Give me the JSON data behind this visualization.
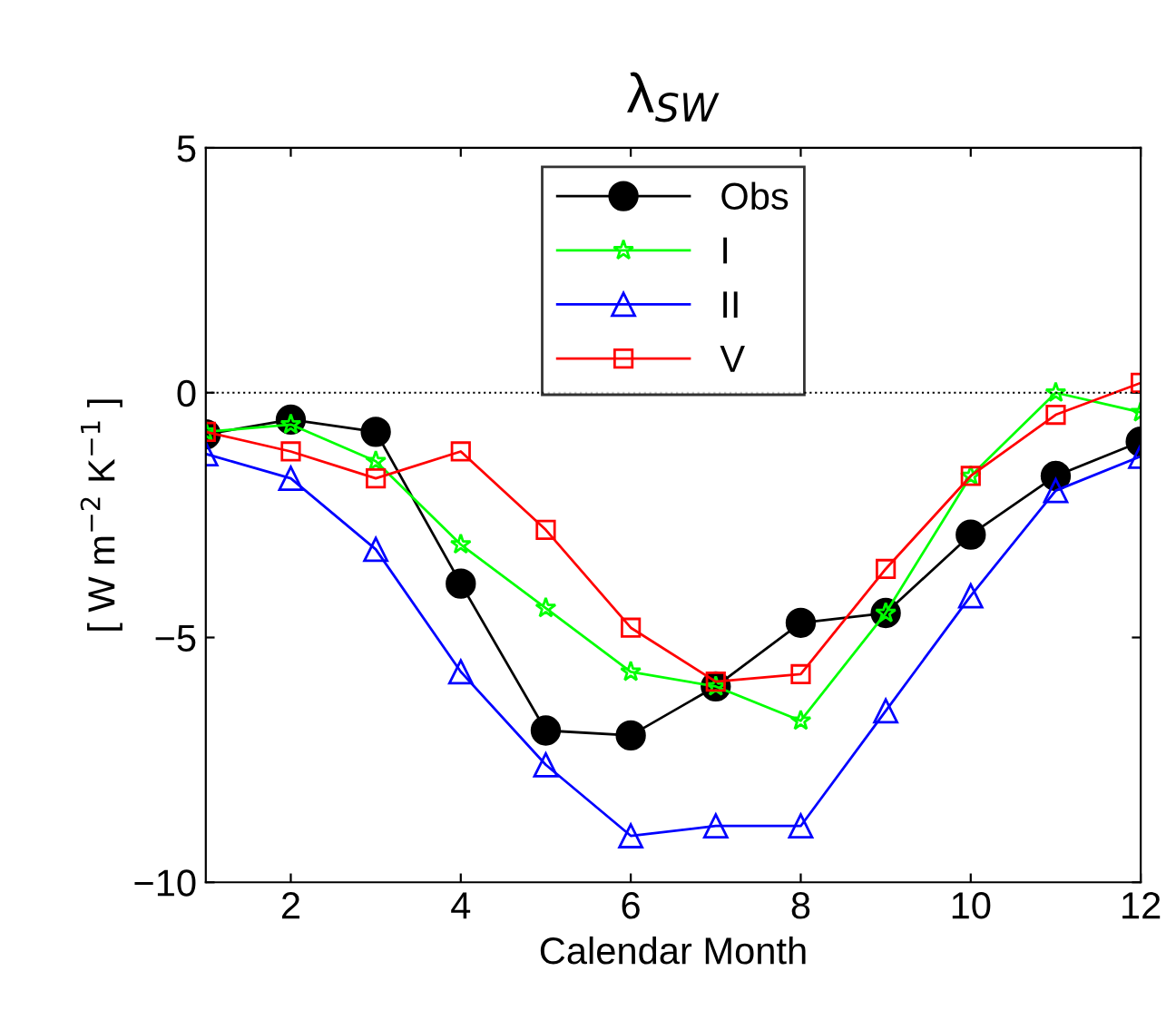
{
  "chart_data": {
    "type": "line",
    "title": "λ$_{SW}$",
    "xlabel": "Calendar Month",
    "ylabel": "[ W m$^{−2}$ K$^{−1}$ ]",
    "x": [
      1,
      2,
      3,
      4,
      5,
      6,
      7,
      8,
      9,
      10,
      11,
      12
    ],
    "series": [
      {
        "name": "Obs",
        "color": "#000000",
        "marker": "circle",
        "values": [
          -0.85,
          -0.55,
          -0.8,
          -3.9,
          -6.9,
          -7.0,
          -6.0,
          -4.7,
          -4.5,
          -2.9,
          -1.7,
          -1.0
        ]
      },
      {
        "name": "I",
        "color": "#00ff00",
        "marker": "star",
        "values": [
          -0.8,
          -0.65,
          -1.4,
          -3.1,
          -4.4,
          -5.7,
          -6.0,
          -6.7,
          -4.5,
          -1.7,
          0.0,
          -0.4
        ]
      },
      {
        "name": "II",
        "color": "#0000ff",
        "marker": "triangle",
        "values": [
          -1.25,
          -1.75,
          -3.2,
          -5.7,
          -7.6,
          -9.05,
          -8.85,
          -8.85,
          -6.5,
          -4.15,
          -2.0,
          -1.3
        ]
      },
      {
        "name": "V",
        "color": "#ff0000",
        "marker": "square",
        "values": [
          -0.8,
          -1.2,
          -1.75,
          -1.2,
          -2.8,
          -4.8,
          -5.9,
          -5.75,
          -3.6,
          -1.7,
          -0.45,
          0.2
        ]
      }
    ],
    "xlim": [
      1,
      12
    ],
    "xticks": [
      2,
      4,
      6,
      8,
      10,
      12
    ],
    "ylim": [
      -10,
      5
    ],
    "yticks": [
      {
        "value": -10,
        "label": "−10"
      },
      {
        "value": -5,
        "label": "−5"
      },
      0,
      5
    ],
    "ref_lines": [
      {
        "axis": "y",
        "value": 0,
        "color": "#000000",
        "line_style": "dotted"
      }
    ],
    "legend": "top center",
    "grid": false
  }
}
